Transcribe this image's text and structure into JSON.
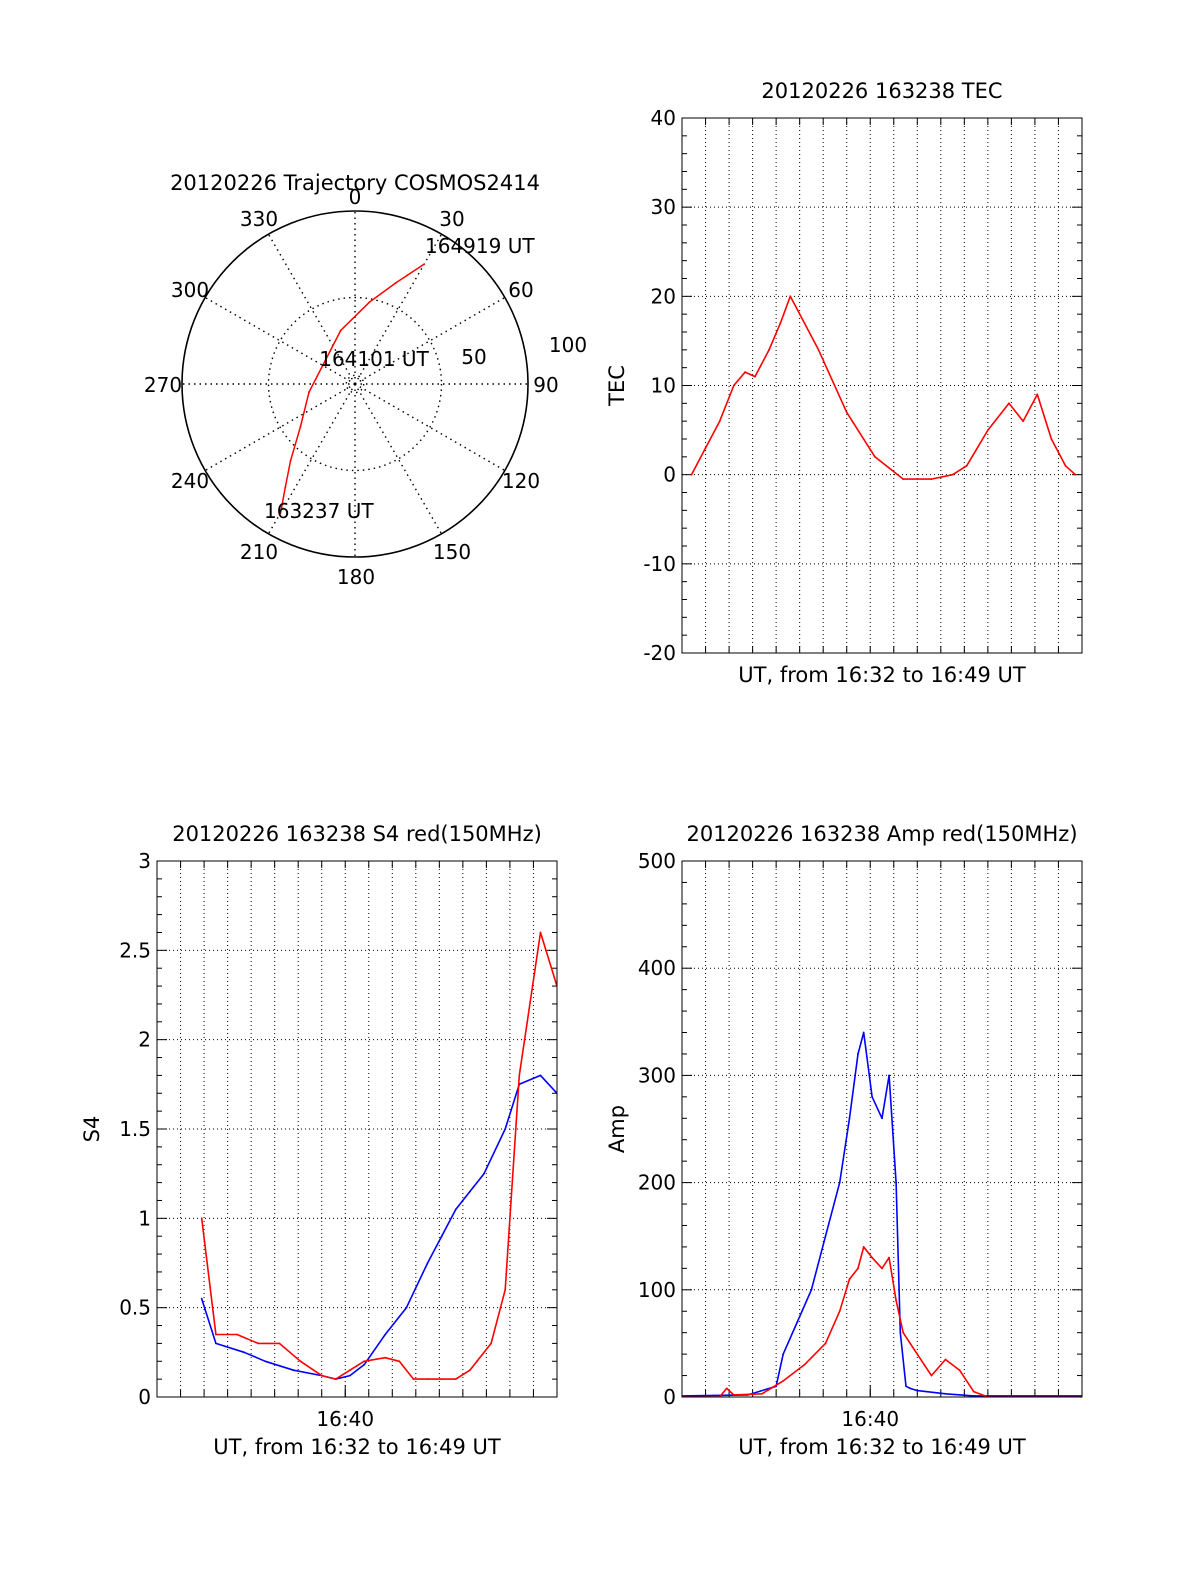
{
  "chart_data": [
    {
      "id": "trajectory",
      "type": "polar-trajectory",
      "title": "20120226 Trajectory COSMOS2414",
      "azimuth_labels": [
        "0",
        "30",
        "60",
        "90",
        "120",
        "150",
        "180",
        "210",
        "240",
        "270",
        "300",
        "330"
      ],
      "radial_labels": [
        "50",
        "100"
      ],
      "radial_max": 100,
      "grid": true,
      "series": [
        {
          "color": "#ff0000",
          "points": [
            {
              "az": 210,
              "zen": 86
            },
            {
              "az": 214,
              "zen": 72
            },
            {
              "az": 220,
              "zen": 58
            },
            {
              "az": 232,
              "zen": 40
            },
            {
              "az": 260,
              "zen": 27
            },
            {
              "az": 310,
              "zen": 22
            },
            {
              "az": 345,
              "zen": 32
            },
            {
              "az": 10,
              "zen": 48
            },
            {
              "az": 22,
              "zen": 63
            },
            {
              "az": 30,
              "zen": 80
            }
          ]
        }
      ],
      "annotations": [
        {
          "text": "164919 UT",
          "az": 30,
          "zen": 80
        },
        {
          "text": "164101 UT",
          "az": 0,
          "zen": 0
        },
        {
          "text": "163237 UT",
          "az": 210,
          "zen": 86
        }
      ]
    },
    {
      "id": "tec",
      "type": "line",
      "title": "20120226 163238 TEC",
      "xlabel": "UT, from 16:32 to 16:49 UT",
      "ylabel": "TEC",
      "xlim": [
        16.5333,
        16.8167
      ],
      "ylim": [
        -20,
        40
      ],
      "y_ticks": [
        "-20",
        "-10",
        "0",
        "10",
        "20",
        "30",
        "40"
      ],
      "grid": true,
      "series": [
        {
          "color": "#ff0000",
          "x": [
            16.54,
            16.55,
            16.56,
            16.57,
            16.578,
            16.585,
            16.595,
            16.603,
            16.61,
            16.63,
            16.65,
            16.67,
            16.69,
            16.71,
            16.725,
            16.735,
            16.75,
            16.765,
            16.775,
            16.785,
            16.795,
            16.805,
            16.812
          ],
          "y": [
            0,
            3,
            6,
            10,
            11.5,
            11,
            14,
            17,
            20,
            14,
            7,
            2,
            -0.5,
            -0.5,
            0,
            1,
            5,
            8,
            6,
            9,
            4,
            1,
            0
          ]
        }
      ]
    },
    {
      "id": "s4",
      "type": "line",
      "title": "20120226 163238 S4 red(150MHz)",
      "xlabel": "UT, from 16:32 to 16:49 UT",
      "ylabel": "S4",
      "xtick_label": "16:40",
      "xlim": [
        16.5333,
        16.8167
      ],
      "ylim": [
        0,
        3
      ],
      "y_ticks": [
        "0",
        "0.5",
        "1",
        "1.5",
        "2",
        "2.5",
        "3"
      ],
      "grid": true,
      "series": [
        {
          "color": "#0000ff",
          "x": [
            16.565,
            16.575,
            16.595,
            16.61,
            16.63,
            16.65,
            16.66,
            16.67,
            16.68,
            16.695,
            16.71,
            16.725,
            16.735,
            16.745,
            16.755,
            16.765,
            16.78,
            16.79,
            16.805,
            16.8167
          ],
          "y": [
            0.55,
            0.3,
            0.25,
            0.2,
            0.15,
            0.12,
            0.1,
            0.12,
            0.18,
            0.35,
            0.5,
            0.75,
            0.9,
            1.05,
            1.15,
            1.25,
            1.5,
            1.75,
            1.8,
            1.7
          ]
        },
        {
          "color": "#ff0000",
          "x": [
            16.565,
            16.575,
            16.59,
            16.605,
            16.62,
            16.635,
            16.65,
            16.66,
            16.67,
            16.68,
            16.695,
            16.705,
            16.715,
            16.725,
            16.735,
            16.745,
            16.755,
            16.76,
            16.77,
            16.78,
            16.79,
            16.805,
            16.8167
          ],
          "y": [
            1.0,
            0.35,
            0.35,
            0.3,
            0.3,
            0.2,
            0.12,
            0.1,
            0.15,
            0.2,
            0.22,
            0.2,
            0.1,
            0.1,
            0.1,
            0.1,
            0.15,
            0.2,
            0.3,
            0.6,
            1.8,
            2.6,
            2.3
          ]
        }
      ]
    },
    {
      "id": "amp",
      "type": "line",
      "title": "20120226 163238 Amp red(150MHz)",
      "xlabel": "UT, from 16:32 to 16:49 UT",
      "ylabel": "Amp",
      "xtick_label": "16:40",
      "xlim": [
        16.5333,
        16.8167
      ],
      "ylim": [
        0,
        500
      ],
      "y_ticks": [
        "0",
        "100",
        "200",
        "300",
        "400",
        "500"
      ],
      "grid": true,
      "series": [
        {
          "color": "#0000ff",
          "x": [
            16.5333,
            16.58,
            16.6,
            16.605,
            16.615,
            16.625,
            16.635,
            16.645,
            16.652,
            16.658,
            16.662,
            16.668,
            16.675,
            16.68,
            16.685,
            16.688,
            16.692,
            16.695,
            16.7,
            16.72,
            16.74,
            16.8167
          ],
          "y": [
            1,
            2,
            10,
            40,
            70,
            100,
            150,
            200,
            260,
            320,
            340,
            280,
            260,
            300,
            200,
            60,
            10,
            8,
            6,
            3,
            1,
            1
          ]
        },
        {
          "color": "#ff0000",
          "x": [
            16.5333,
            16.56,
            16.565,
            16.57,
            16.59,
            16.605,
            16.62,
            16.635,
            16.645,
            16.652,
            16.658,
            16.662,
            16.668,
            16.675,
            16.68,
            16.685,
            16.69,
            16.695,
            16.705,
            16.71,
            16.72,
            16.73,
            16.74,
            16.75,
            16.8167
          ],
          "y": [
            0,
            0,
            8,
            2,
            3,
            15,
            30,
            50,
            80,
            110,
            120,
            140,
            130,
            120,
            130,
            90,
            60,
            50,
            30,
            20,
            35,
            25,
            5,
            0,
            0
          ]
        }
      ]
    }
  ]
}
